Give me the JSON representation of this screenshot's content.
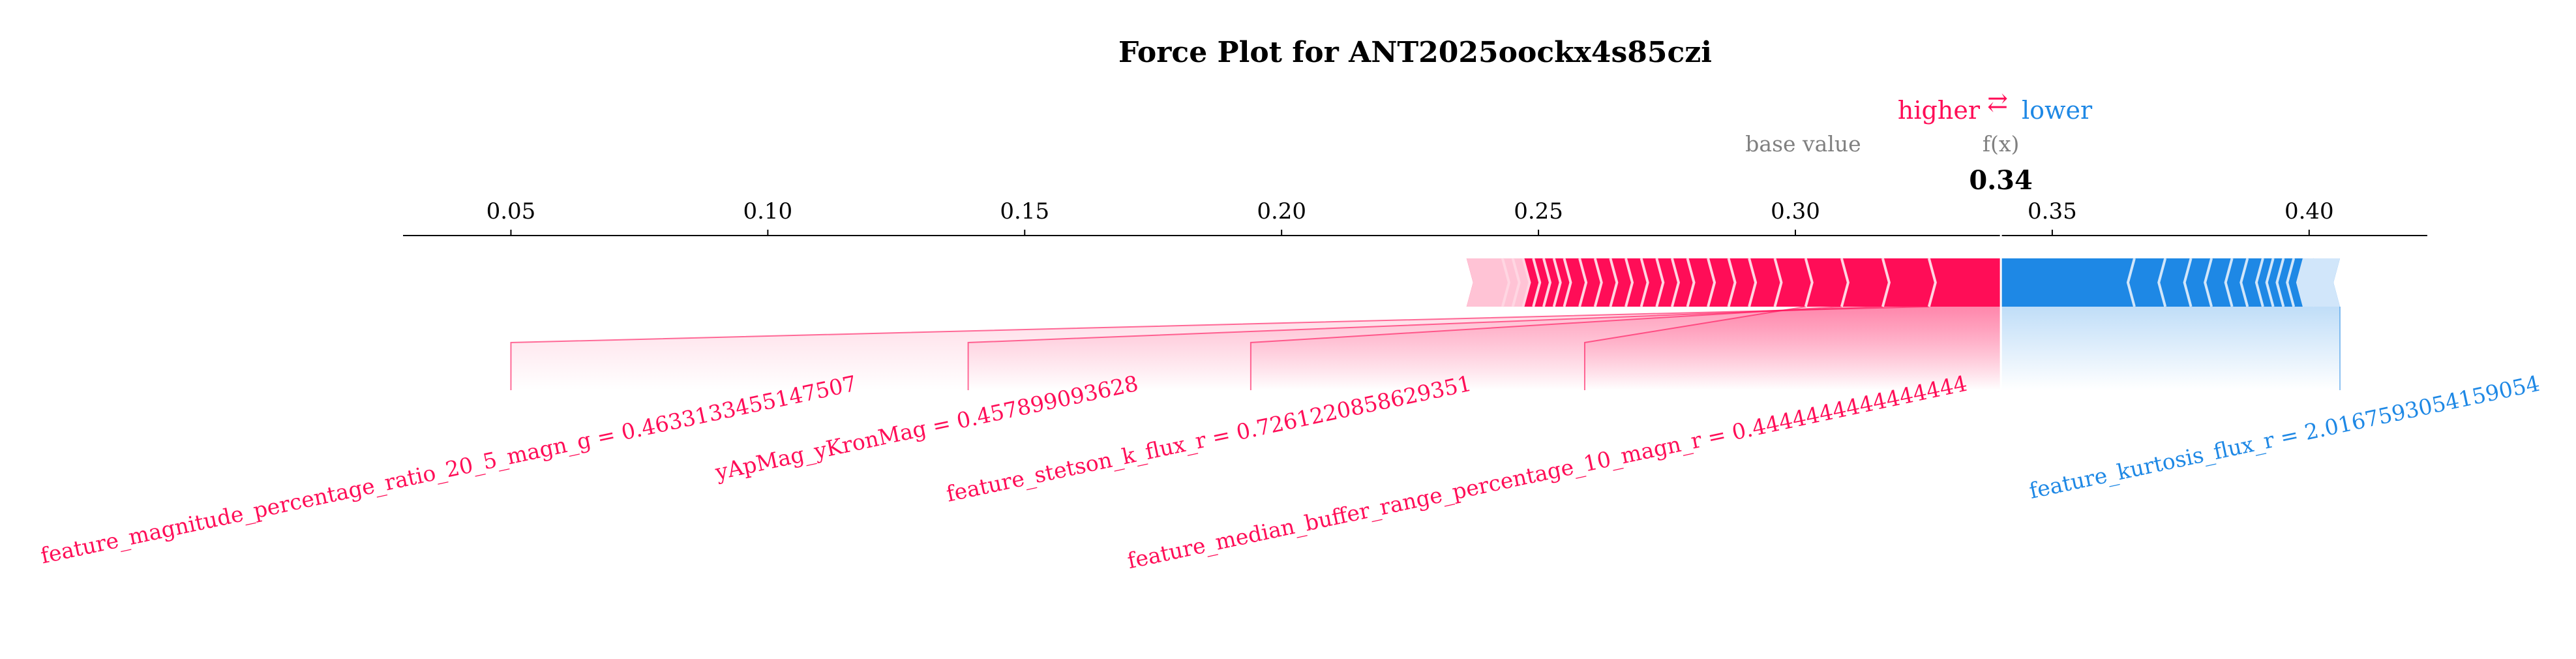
{
  "chart_data": {
    "type": "force",
    "title": "Force Plot for ANT2025oockx4s85czi",
    "legend": {
      "higher": "higher",
      "arrows": "⇄",
      "lower": "lower"
    },
    "base_value_label": "base value",
    "fx_label": "f(x)",
    "fx_value_text": "0.34",
    "fx_value": 0.34,
    "xlim": [
      0.029,
      0.423
    ],
    "ticks": [
      0.05,
      0.1,
      0.15,
      0.2,
      0.25,
      0.3,
      0.35,
      0.4
    ],
    "tick_labels": [
      "0.05",
      "0.10",
      "0.15",
      "0.20",
      "0.25",
      "0.30",
      "0.35",
      "0.40"
    ],
    "positive_extent": [
      0.236,
      0.34
    ],
    "negative_extent": [
      0.34,
      0.406
    ],
    "positive_color": "#ff0d57",
    "negative_color": "#1e88e5",
    "positive_light": "#ffc3d5",
    "negative_light": "#d1e6fa",
    "positive_dividers": [
      0.243,
      0.245,
      0.247,
      0.249,
      0.251,
      0.253,
      0.255,
      0.258,
      0.261,
      0.264,
      0.267,
      0.27,
      0.273,
      0.276,
      0.279,
      0.283,
      0.287,
      0.291,
      0.296,
      0.302,
      0.309,
      0.317,
      0.326
    ],
    "negative_dividers": [
      0.366,
      0.372,
      0.377,
      0.381,
      0.385,
      0.388,
      0.391,
      0.393,
      0.395,
      0.397,
      0.399,
      0.401
    ],
    "labeled_features": [
      {
        "label": "feature_magnitude_percentage_ratio_20_5_magn_g = 0.4633133455147507",
        "side": "positive",
        "bar_start": 0.236,
        "bar_end": 0.326,
        "anchor": 0.05
      },
      {
        "label": "yApMag_yKronMag = 0.457899093628",
        "side": "positive",
        "bar_start": 0.241,
        "bar_end": 0.317,
        "anchor": 0.139
      },
      {
        "label": "feature_stetson_k_flux_r = 0.7261220858629351",
        "side": "positive",
        "bar_start": 0.245,
        "bar_end": 0.309,
        "anchor": 0.194
      },
      {
        "label": "feature_median_buffer_range_percentage_10_magn_r = 0.4444444444444444",
        "side": "positive",
        "bar_start": 0.255,
        "bar_end": 0.302,
        "anchor": 0.259
      },
      {
        "label": "feature_kurtosis_flux_r = 2.0167593054159054",
        "side": "negative",
        "bar_start": 0.34,
        "bar_end": 0.406,
        "anchor": 0.406
      }
    ]
  }
}
